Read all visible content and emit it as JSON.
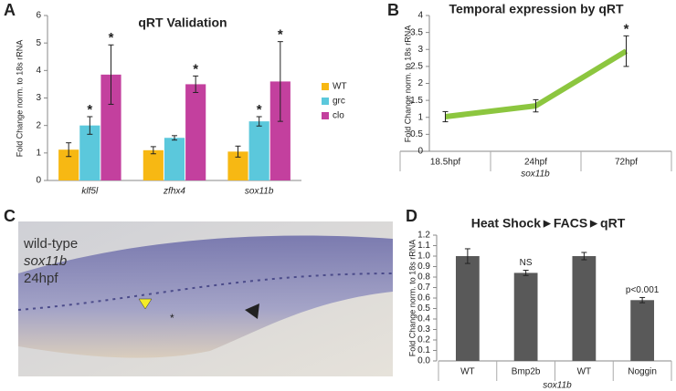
{
  "chart_data": [
    {
      "type": "bar",
      "panel": "A",
      "title": "qRT Validation",
      "y_label": "Fold Change norm. to 18s rRNA",
      "categories": [
        "klf5l",
        "zfhx4",
        "sox11b"
      ],
      "series": [
        {
          "name": "WT",
          "color": "#f7b813",
          "values": [
            1.12,
            1.1,
            1.05
          ],
          "errors": [
            0.25,
            0.13,
            0.2
          ]
        },
        {
          "name": "grc",
          "color": "#5bc8dc",
          "values": [
            2.0,
            1.55,
            2.15
          ],
          "errors": [
            0.32,
            0.08,
            0.17
          ],
          "annotations": [
            "*",
            null,
            "*"
          ]
        },
        {
          "name": "clo",
          "color": "#c3409e",
          "values": [
            3.85,
            3.5,
            3.6
          ],
          "errors": [
            1.08,
            0.3,
            1.45
          ],
          "annotations": [
            "*",
            "*",
            "*"
          ]
        }
      ],
      "ylim": [
        0,
        6
      ],
      "yticks": [
        0,
        1,
        2,
        3,
        4,
        5,
        6
      ],
      "legend": "right"
    },
    {
      "type": "line",
      "panel": "B",
      "title": "Temporal expression by qRT",
      "y_label": "Fold Change norm. to 18s rRNA",
      "x_label": "sox11b",
      "categories": [
        "18.5hpf",
        "24hpf",
        "72hpf"
      ],
      "series": [
        {
          "color": "#8cc63f",
          "values": [
            1.02,
            1.34,
            2.95
          ],
          "errors": [
            0.15,
            0.18,
            0.45
          ],
          "annotations": [
            null,
            null,
            "*"
          ]
        }
      ],
      "ylim": [
        0,
        4
      ],
      "yticks": [
        0,
        0.5,
        1,
        1.5,
        2,
        2.5,
        3,
        3.5,
        4
      ]
    },
    {
      "type": "bar",
      "panel": "D",
      "title": "Heat Shock►FACS►qRT",
      "y_label": "Fold Change norm. to 18s rRNA",
      "x_label": "sox11b",
      "categories": [
        "WT",
        "Bmp2b",
        "WT",
        "Noggin"
      ],
      "series": [
        {
          "color": "#595959",
          "values": [
            1.0,
            0.84,
            1.0,
            0.58
          ],
          "errors": [
            0.07,
            0.025,
            0.035,
            0.025
          ],
          "annotations": [
            null,
            "NS",
            null,
            "p<0.001"
          ]
        }
      ],
      "ylim": [
        0,
        1.2
      ],
      "yticks": [
        {
          "value": 0,
          "label": "0.0"
        },
        0.1,
        0.2,
        0.3,
        0.4,
        0.5,
        0.6,
        0.7,
        0.8,
        0.9,
        {
          "value": 1,
          "label": "1.0"
        },
        1.1,
        1.2
      ]
    }
  ],
  "image": {
    "panel": "C",
    "labels": [
      "wild-type",
      "sox11b",
      "24hpf"
    ],
    "marker": "*"
  }
}
